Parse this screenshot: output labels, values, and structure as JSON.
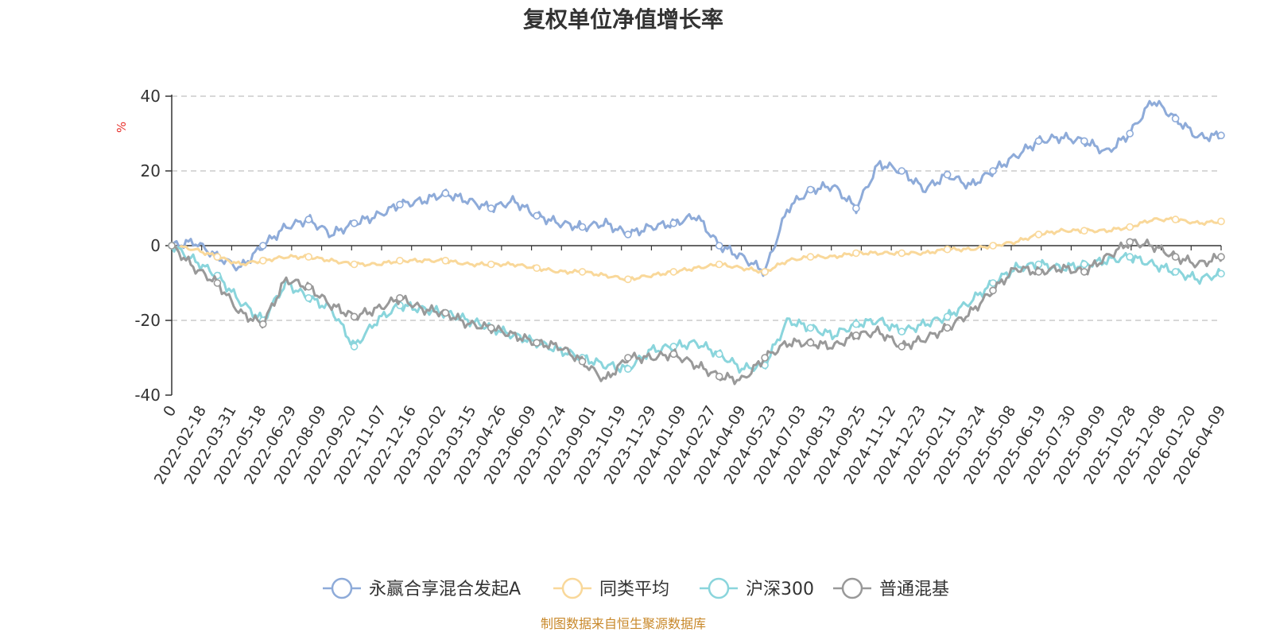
{
  "chart_data": {
    "type": "line",
    "title": "复权单位净值增长率",
    "ylabel": "%",
    "xlabel": "",
    "ylim": [
      -40,
      40
    ],
    "yticks": [
      "40",
      "20",
      "0",
      "-20",
      "-40"
    ],
    "ytick_values": [
      40,
      20,
      0,
      -20,
      -40
    ],
    "xticks": [
      "0",
      "2022-02-18",
      "2022-03-31",
      "2022-05-18",
      "2022-06-29",
      "2022-08-09",
      "2022-09-20",
      "2022-11-07",
      "2022-12-16",
      "2023-02-02",
      "2023-03-15",
      "2023-04-26",
      "2023-06-09",
      "2023-07-24",
      "2023-09-01",
      "2023-10-19",
      "2023-11-29",
      "2024-01-09",
      "2024-02-27",
      "2024-04-09",
      "2024-05-23",
      "2024-07-03",
      "2024-08-13",
      "2024-09-25",
      "2024-11-12",
      "2024-12-23",
      "2025-02-11",
      "2025-03-24",
      "2025-05-08",
      "2025-06-19",
      "2025-07-30",
      "2025-09-09",
      "2025-10-28",
      "2025-12-08",
      "2026-01-20",
      "2026-04-09"
    ],
    "grid": true,
    "legend_position": "bottom",
    "series": [
      {
        "name": "永赢合享混合发起A",
        "color": "#8eabd9",
        "values": [
          0,
          1,
          -3,
          -6,
          0,
          5,
          7,
          3,
          6,
          8,
          11,
          12,
          14,
          12,
          10,
          12,
          8,
          6,
          5,
          6,
          3,
          5,
          6,
          8,
          0,
          -3,
          -7,
          10,
          15,
          16,
          10,
          22,
          20,
          15,
          19,
          16,
          20,
          24,
          28,
          29,
          28,
          25,
          30,
          39,
          34,
          29,
          29.5
        ]
      },
      {
        "name": "同类平均",
        "color": "#f9d89a",
        "values": [
          0,
          -1,
          -3,
          -5,
          -4,
          -3,
          -3,
          -4,
          -5,
          -5,
          -4,
          -4,
          -4,
          -5,
          -5,
          -5,
          -6,
          -7,
          -7,
          -8,
          -9,
          -8,
          -7,
          -6,
          -5,
          -6,
          -7,
          -4,
          -3,
          -3,
          -2,
          -2,
          -2,
          -2,
          -1,
          -1,
          0,
          1,
          3,
          4,
          4,
          4,
          5,
          7,
          7,
          6,
          6.5
        ]
      },
      {
        "name": "沪深300",
        "color": "#8ad5dc",
        "values": [
          0,
          -4,
          -8,
          -15,
          -20,
          -10,
          -14,
          -17,
          -27,
          -20,
          -16,
          -17,
          -18,
          -20,
          -22,
          -24,
          -26,
          -28,
          -30,
          -32,
          -33,
          -28,
          -27,
          -26,
          -29,
          -33,
          -32,
          -20,
          -22,
          -24,
          -21,
          -20,
          -23,
          -21,
          -19,
          -15,
          -10,
          -6,
          -5,
          -6,
          -5,
          -4,
          -3,
          -5,
          -7,
          -9,
          -7.5
        ]
      },
      {
        "name": "普通混基",
        "color": "#999999",
        "values": [
          0,
          -6,
          -10,
          -18,
          -21,
          -9,
          -11,
          -16,
          -19,
          -17,
          -14,
          -17,
          -18,
          -21,
          -22,
          -24,
          -26,
          -27,
          -31,
          -36,
          -30,
          -30,
          -29,
          -32,
          -35,
          -36,
          -30,
          -26,
          -26,
          -27,
          -24,
          -23,
          -27,
          -25,
          -22,
          -18,
          -12,
          -6,
          -7,
          -6,
          -7,
          -3,
          1,
          0,
          -3,
          -5,
          -3
        ]
      }
    ]
  },
  "source_note": "制图数据来自恒生聚源数据库"
}
